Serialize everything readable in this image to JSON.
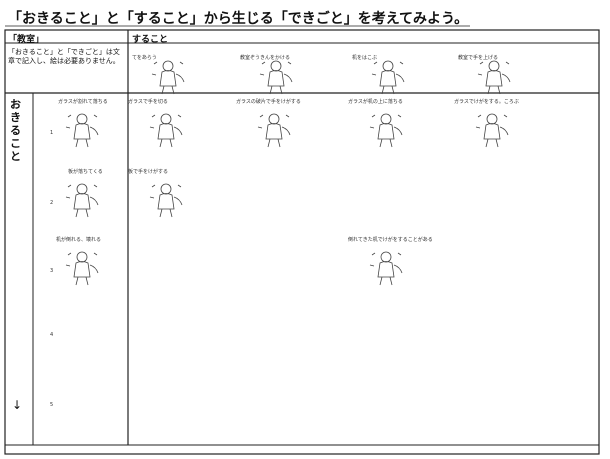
{
  "title": "「おきること」と「すること」から生じる「できごと」を考えてみよう。",
  "header": {
    "place": "「教室」",
    "action": "すること"
  },
  "note": "「おきること」と「できごと」は文章で記入し、絵は必要ありません。",
  "row_label": "おきること",
  "arrow": "↓",
  "top_actions": [
    "てをあらう",
    "教室ぞうきんをかける",
    "机をはこぶ",
    "教室で手を上げる"
  ],
  "events": [
    {
      "number": "1",
      "label": "ガラスが割れて落ちる",
      "cells": [
        "ガラスで手を切る",
        "ガラスの破片で手をけがする",
        "ガラスが机の上に落ちる",
        "ガラスでけがをする。ころぶ"
      ]
    },
    {
      "number": "2",
      "label": "板が落ちてくる",
      "cells": [
        "板で手をけがする",
        null,
        null,
        null
      ]
    },
    {
      "number": "3",
      "label": "机が倒れる、壊れる",
      "cells": [
        null,
        null,
        "倒れてきた机でけがをすることがある",
        null
      ]
    },
    {
      "number": "4"
    },
    {
      "number": "5"
    }
  ]
}
